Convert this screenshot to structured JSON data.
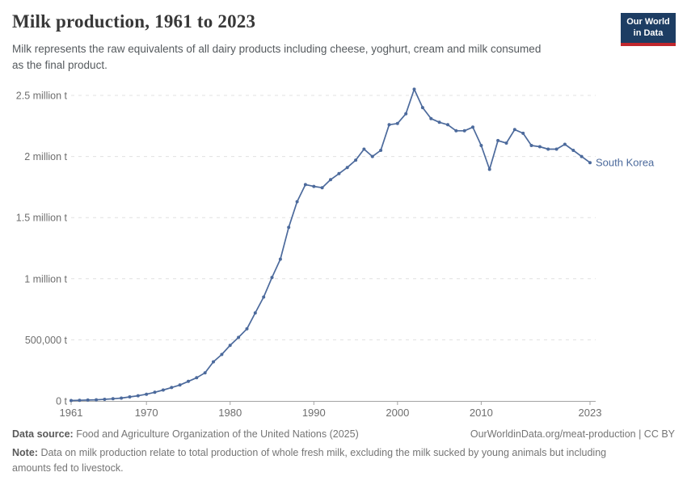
{
  "header": {
    "title": "Milk production, 1961 to 2023",
    "subtitle_lines": [
      "Milk represents the raw equivalents of all dairy products including cheese, yoghurt, cream and milk consumed",
      "as the final product."
    ],
    "logo": {
      "line1": "Our World",
      "line2": "in Data",
      "bg_color": "#1d3d63",
      "bar_color": "#c0272d"
    }
  },
  "chart_data": {
    "type": "line",
    "title": "Milk production, 1961 to 2023",
    "entity": "South Korea",
    "unit": "tonnes",
    "line_color": "#4C6A9C",
    "grid": "dashed-horizontal",
    "legend_position": "end-of-line",
    "ylim": [
      0,
      2600000
    ],
    "xticks": [
      1961,
      1970,
      1980,
      1990,
      2000,
      2010,
      2023
    ],
    "yticks": [
      {
        "value": 0,
        "label": "0 t"
      },
      {
        "value": 500000,
        "label": "500,000 t"
      },
      {
        "value": 1000000,
        "label": "1 million t"
      },
      {
        "value": 1500000,
        "label": "1.5 million t"
      },
      {
        "value": 2000000,
        "label": "2 million t"
      },
      {
        "value": 2500000,
        "label": "2.5 million t"
      }
    ],
    "years": [
      1961,
      1962,
      1963,
      1964,
      1965,
      1966,
      1967,
      1968,
      1969,
      1970,
      1971,
      1972,
      1973,
      1974,
      1975,
      1976,
      1977,
      1978,
      1979,
      1980,
      1981,
      1982,
      1983,
      1984,
      1985,
      1986,
      1987,
      1988,
      1989,
      1990,
      1991,
      1992,
      1993,
      1994,
      1995,
      1996,
      1997,
      1998,
      1999,
      2000,
      2001,
      2002,
      2003,
      2004,
      2005,
      2006,
      2007,
      2008,
      2009,
      2010,
      2011,
      2012,
      2013,
      2014,
      2015,
      2016,
      2017,
      2018,
      2019,
      2020,
      2021,
      2022,
      2023
    ],
    "values": [
      3000,
      5000,
      7000,
      9000,
      13000,
      18000,
      23000,
      33000,
      42000,
      55000,
      71000,
      89000,
      110000,
      130000,
      160000,
      190000,
      230000,
      320000,
      380000,
      455000,
      520000,
      590000,
      720000,
      850000,
      1010000,
      1160000,
      1420000,
      1630000,
      1770000,
      1755000,
      1745000,
      1810000,
      1860000,
      1910000,
      1970000,
      2060000,
      2000000,
      2050000,
      2260000,
      2270000,
      2350000,
      2550000,
      2400000,
      2310000,
      2280000,
      2260000,
      2210000,
      2210000,
      2240000,
      2090000,
      1895000,
      2130000,
      2110000,
      2220000,
      2190000,
      2090000,
      2080000,
      2060000,
      2060000,
      2100000,
      2050000,
      2000000,
      1950000
    ]
  },
  "footer": {
    "source_label": "Data source:",
    "source_text": "Food and Agriculture Organization of the United Nations (2025)",
    "link_text": "OurWorldinData.org/meat-production | CC BY",
    "note_label": "Note:",
    "note_line1": "Data on milk production relate to total production of whole fresh milk, excluding the milk sucked by young animals but including",
    "note_line2": "amounts fed to livestock."
  }
}
